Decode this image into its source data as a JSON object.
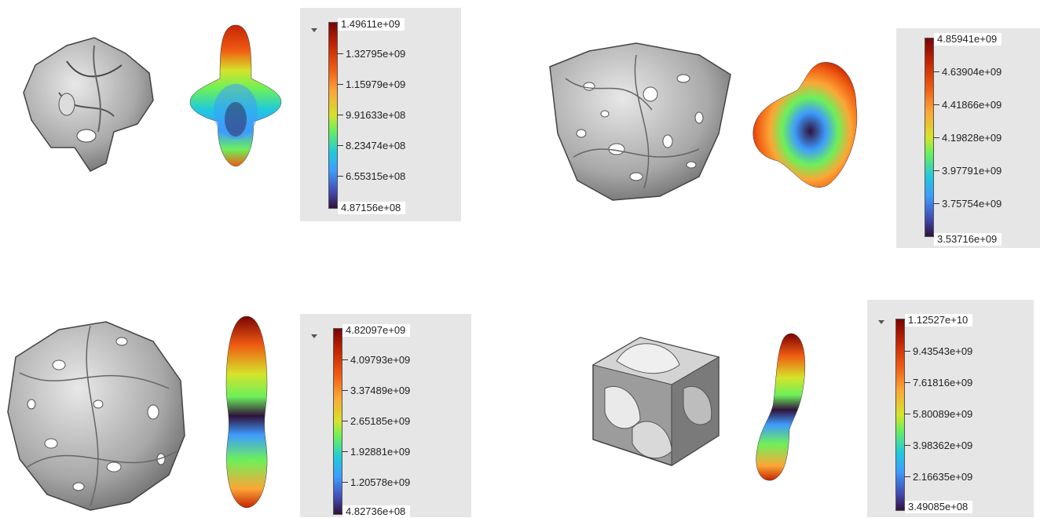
{
  "panels": [
    {
      "id": "top-left",
      "legend": [
        "1.49611e+09",
        "1.32795e+09",
        "1.15979e+09",
        "9.91633e+08",
        "8.23474e+08",
        "6.55315e+08",
        "4.87156e+08"
      ]
    },
    {
      "id": "top-right",
      "legend": [
        "4.85941e+09",
        "4.63904e+09",
        "4.41866e+09",
        "4.19828e+09",
        "3.97791e+09",
        "3.75754e+09",
        "3.53716e+09"
      ]
    },
    {
      "id": "bottom-left",
      "legend": [
        "4.82097e+09",
        "4.09793e+09",
        "3.37489e+09",
        "2.65185e+09",
        "1.92881e+09",
        "1.20578e+09",
        "4.82736e+08"
      ]
    },
    {
      "id": "bottom-right",
      "legend": [
        "1.12527e+10",
        "9.43543e+09",
        "7.61816e+09",
        "5.80089e+09",
        "3.98362e+09",
        "2.16635e+09",
        "3.49085e+08"
      ]
    }
  ],
  "colormap": [
    "#7a0403",
    "#c42503",
    "#f05b12",
    "#fca636",
    "#d6e32a",
    "#6cf05a",
    "#1fc9dd",
    "#3e9bfe",
    "#4145ab",
    "#30123b"
  ]
}
